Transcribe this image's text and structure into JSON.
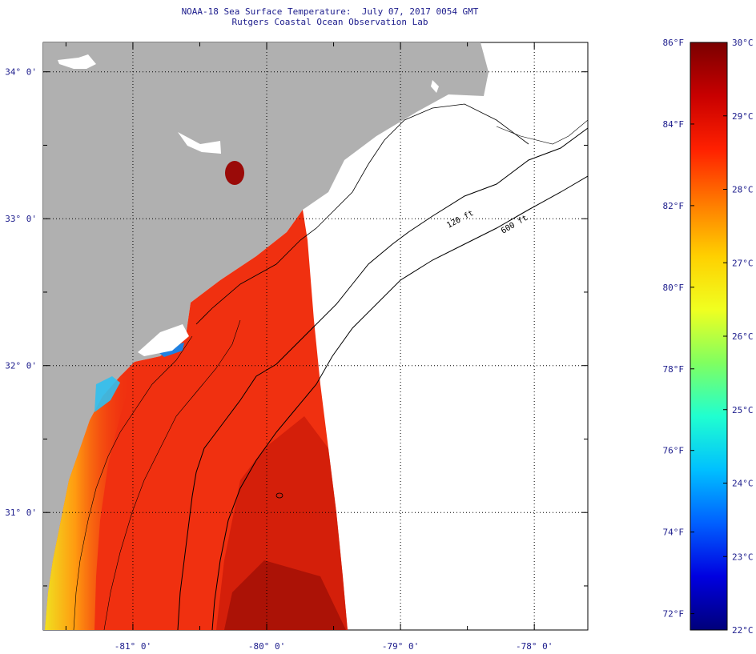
{
  "header": {
    "title": "NOAA-18 Sea Surface Temperature:  July 07, 2017 0054 GMT",
    "subtitle": "Rutgers Coastal Ocean Observation Lab"
  },
  "map": {
    "lon_range": [
      -81.67,
      -77.6
    ],
    "lat_range": [
      30.2,
      34.2
    ],
    "lon_labels": [
      {
        "lon": -81,
        "text": "-81° 0'"
      },
      {
        "lon": -80,
        "text": "-80° 0'"
      },
      {
        "lon": -79,
        "text": "-79° 0'"
      },
      {
        "lon": -78,
        "text": "-78° 0'"
      }
    ],
    "lat_labels": [
      {
        "lat": 34,
        "text": "34° 0'"
      },
      {
        "lat": 33,
        "text": "33° 0'"
      },
      {
        "lat": 32,
        "text": "32° 0'"
      },
      {
        "lat": 31,
        "text": "31° 0'"
      }
    ],
    "contour_labels": [
      "120 ft",
      "600 ft"
    ],
    "colors": {
      "land": "#b0b0b0",
      "ocean_nodata": "#ffffff",
      "sst_main": "#f03010"
    }
  },
  "colorbar": {
    "min_c": 22,
    "max_c": 30,
    "fahrenheit_labels": [
      "86°F",
      "84°F",
      "82°F",
      "80°F",
      "78°F",
      "76°F",
      "74°F",
      "72°F"
    ],
    "fahrenheit_values": [
      86,
      84,
      82,
      80,
      78,
      76,
      74,
      72
    ],
    "celsius_labels": [
      "30°C",
      "29°C",
      "28°C",
      "27°C",
      "26°C",
      "25°C",
      "24°C",
      "23°C",
      "22°C"
    ],
    "celsius_values": [
      30,
      29,
      28,
      27,
      26,
      25,
      24,
      23,
      22
    ],
    "stops": [
      "#7a0000",
      "#c80000",
      "#ff2000",
      "#ff7a00",
      "#ffd000",
      "#f0ff20",
      "#80ff60",
      "#20ffd0",
      "#00c0ff",
      "#0060ff",
      "#0000e0",
      "#00007a"
    ]
  }
}
